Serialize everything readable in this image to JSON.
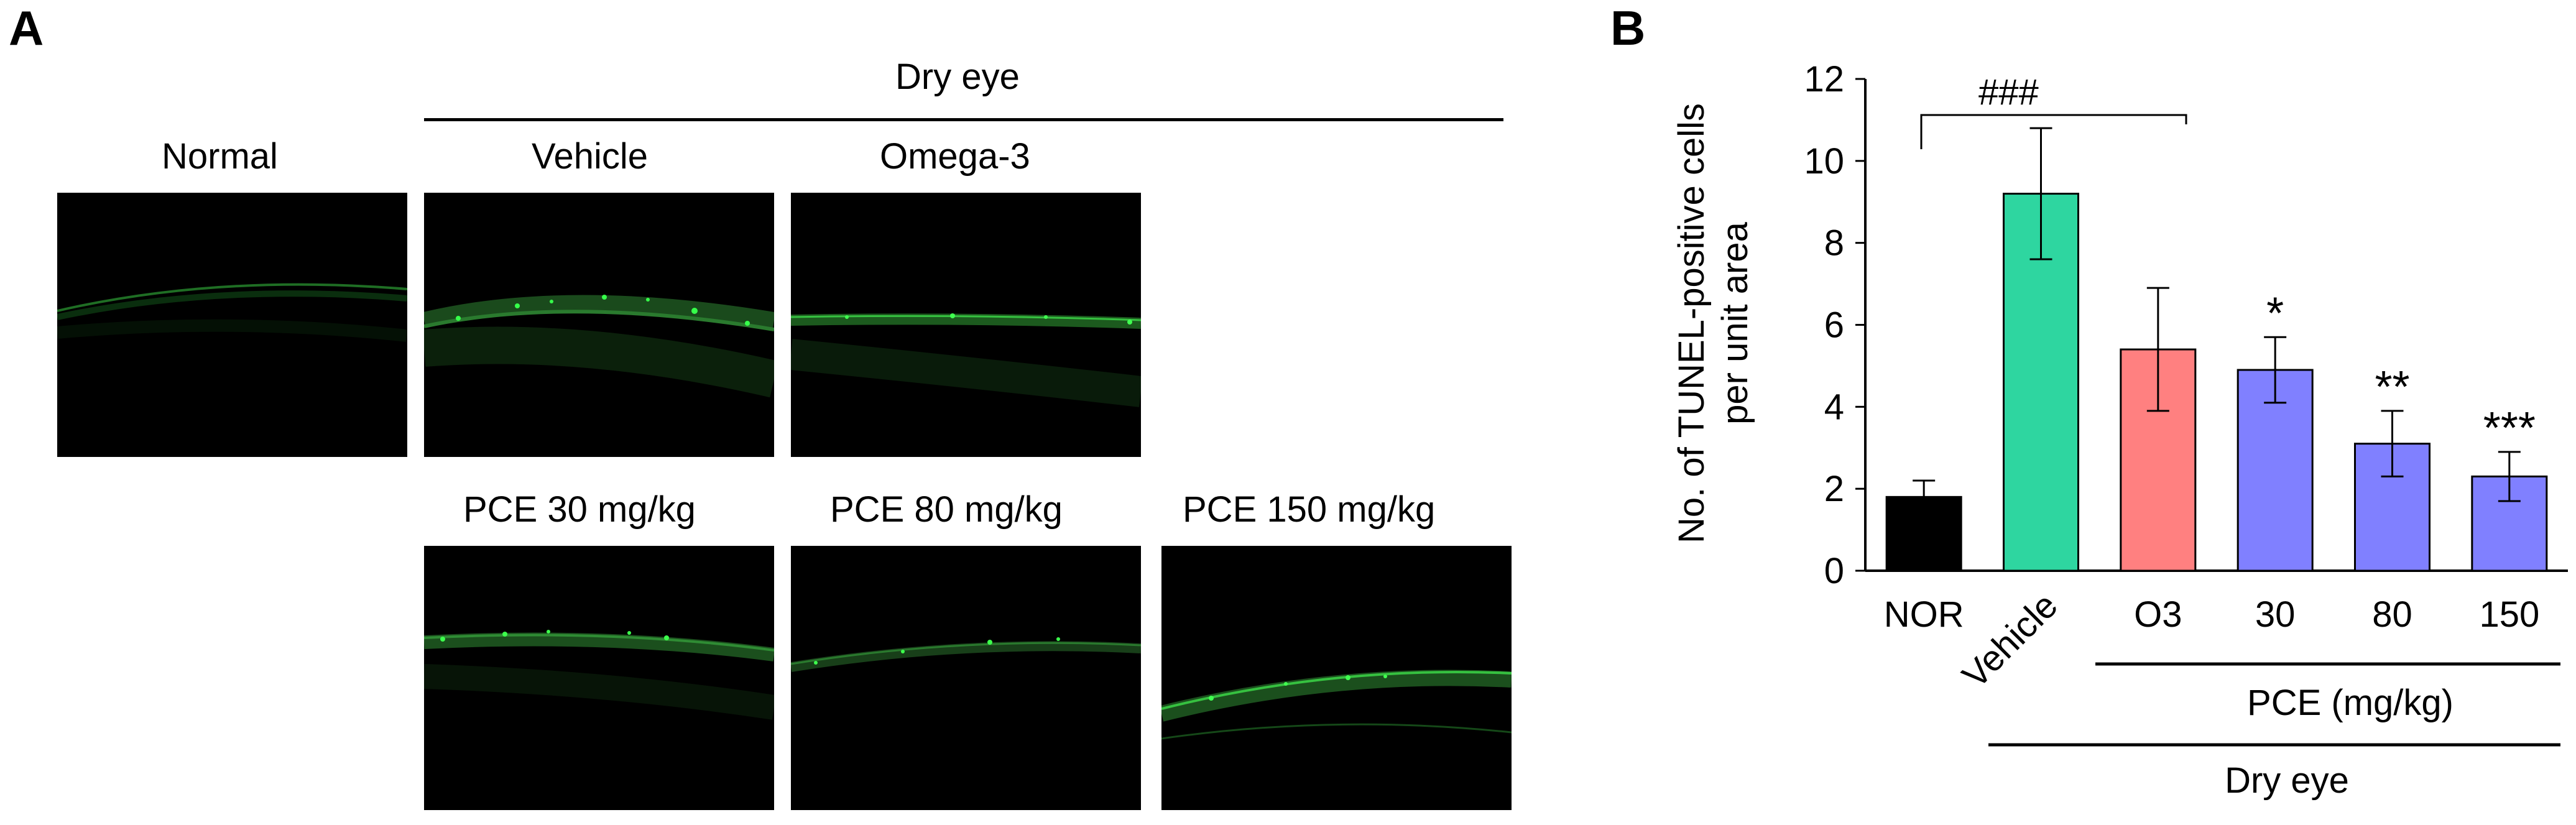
{
  "panel_a": {
    "letter": "A",
    "group_title": "Dry eye",
    "labels": {
      "normal": "Normal",
      "vehicle": "Vehicle",
      "omega3": "Omega-3",
      "pce30": "PCE 30 mg/kg",
      "pce80": "PCE 80 mg/kg",
      "pce150": "PCE 150 mg/kg"
    }
  },
  "panel_b": {
    "letter": "B",
    "group_pce": "PCE (mg/kg)",
    "group_dry": "Dry eye",
    "bracket_label": "###"
  },
  "chart_data": {
    "type": "bar",
    "ylabel_line1": "No. of TUNEL-positive cells",
    "ylabel_line2": "per unit area",
    "ylim": [
      0,
      12
    ],
    "yticks": [
      "0",
      "2",
      "4",
      "6",
      "8",
      "10",
      "12"
    ],
    "categories": [
      "NOR",
      "Vehicle",
      "O3",
      "30",
      "80",
      "150"
    ],
    "values": [
      1.8,
      9.2,
      5.4,
      4.9,
      3.1,
      2.3
    ],
    "errors": [
      0.4,
      1.6,
      1.5,
      0.8,
      0.8,
      0.6
    ],
    "significance": [
      "",
      "",
      "",
      "*",
      "**",
      "***"
    ],
    "colors": [
      "#000000",
      "#2ED6A0",
      "#FF8080",
      "#8080FF",
      "#8080FF",
      "#8080FF"
    ],
    "grid": false
  }
}
